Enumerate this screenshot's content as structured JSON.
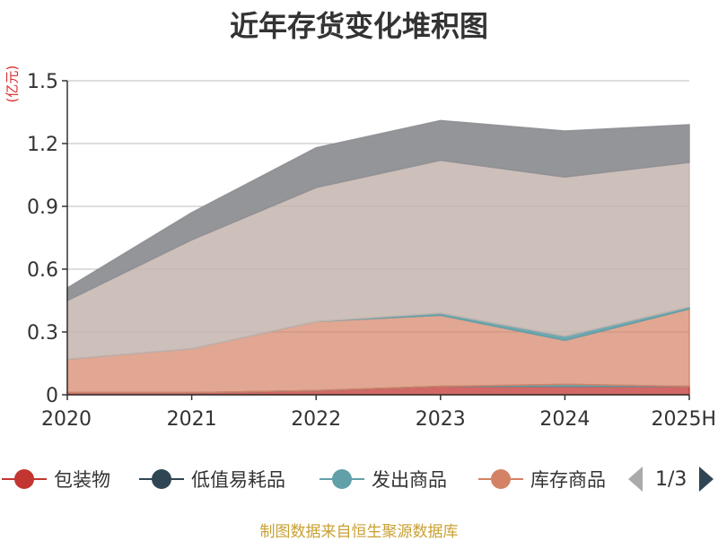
{
  "title": "近年存货变化堆积图",
  "unit": "(亿元)",
  "source": "制图数据来自恒生聚源数据库",
  "pager": "1/3",
  "colors": {
    "packaging": "#c23531",
    "consumables": "#2f4554",
    "shipped": "#61a0a8",
    "merchandise": "#d48265",
    "series5": "#c4b4ae",
    "series6": "#8e8f94"
  },
  "chart_data": {
    "type": "area",
    "stacked": true,
    "categories": [
      "2020",
      "2021",
      "2022",
      "2023",
      "2024",
      "2025H"
    ],
    "ylim": [
      0,
      1.5
    ],
    "yticks": [
      0,
      0.3,
      0.6,
      0.9,
      1.2,
      1.5
    ],
    "ytick_labels": [
      "0",
      "0.3",
      "0.6",
      "0.9",
      "1.2",
      "1.5"
    ],
    "legend_visible": [
      "包装物",
      "低值易耗品",
      "发出商品",
      "库存商品"
    ],
    "series": [
      {
        "name": "包装物",
        "values": [
          0.01,
          0.01,
          0.02,
          0.04,
          0.04,
          0.04
        ]
      },
      {
        "name": "低值易耗品",
        "values": [
          0.0,
          0.0,
          0.0,
          0.0,
          0.0,
          0.0
        ]
      },
      {
        "name": "发出商品",
        "values": [
          0.0,
          0.0,
          0.0,
          0.0,
          0.01,
          0.0
        ]
      },
      {
        "name": "库存商品",
        "values": [
          0.16,
          0.21,
          0.33,
          0.34,
          0.21,
          0.37
        ]
      },
      {
        "name": "",
        "values": [
          0.0,
          0.0,
          0.0,
          0.01,
          0.02,
          0.01
        ]
      },
      {
        "name": "",
        "values": [
          0.28,
          0.52,
          0.64,
          0.73,
          0.76,
          0.69
        ]
      },
      {
        "name": "",
        "values": [
          0.06,
          0.13,
          0.19,
          0.19,
          0.22,
          0.18
        ]
      }
    ]
  }
}
